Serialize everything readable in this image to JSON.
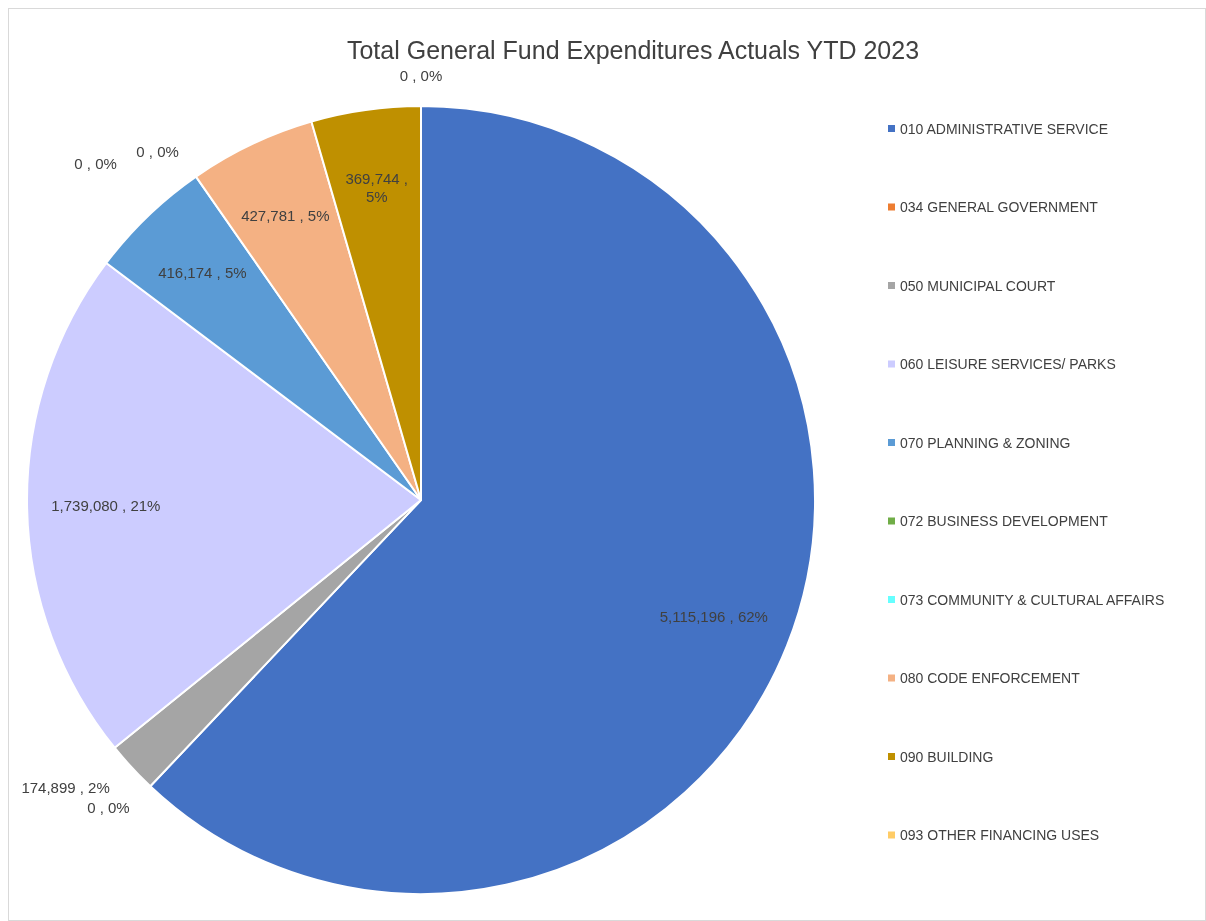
{
  "chart_data": {
    "type": "pie",
    "title": "Total General Fund Expenditures Actuals YTD 2023",
    "categories": [
      "010 ADMINISTRATIVE SERVICE",
      "034 GENERAL GOVERNMENT",
      "050 MUNICIPAL COURT",
      "060 LEISURE SERVICES/ PARKS",
      "070 PLANNING & ZONING",
      "072 BUSINESS DEVELOPMENT",
      "073 COMMUNITY & CULTURAL AFFAIRS",
      "080 CODE ENFORCEMENT",
      "090 BUILDING",
      "093 OTHER FINANCING USES"
    ],
    "values": [
      5115196,
      0,
      174899,
      1739080,
      416174,
      0,
      0,
      427781,
      369744,
      0
    ],
    "colors": [
      "#4472c4",
      "#ed7d31",
      "#a5a5a5",
      "#ccccff",
      "#5b9bd5",
      "#70ad47",
      "#66ffff",
      "#f4b183",
      "#bf9000",
      "#ffcc66"
    ],
    "value_labels": [
      "5,115,196 , 62%",
      "0 , 0%",
      "174,899 , 2%",
      "1,739,080 , 21%",
      "416,174 , 5%",
      "0 , 0%",
      "0 , 0%",
      "427,781 , 5%",
      "369,744 , 5%",
      "0 , 0%"
    ],
    "legend": "right"
  }
}
